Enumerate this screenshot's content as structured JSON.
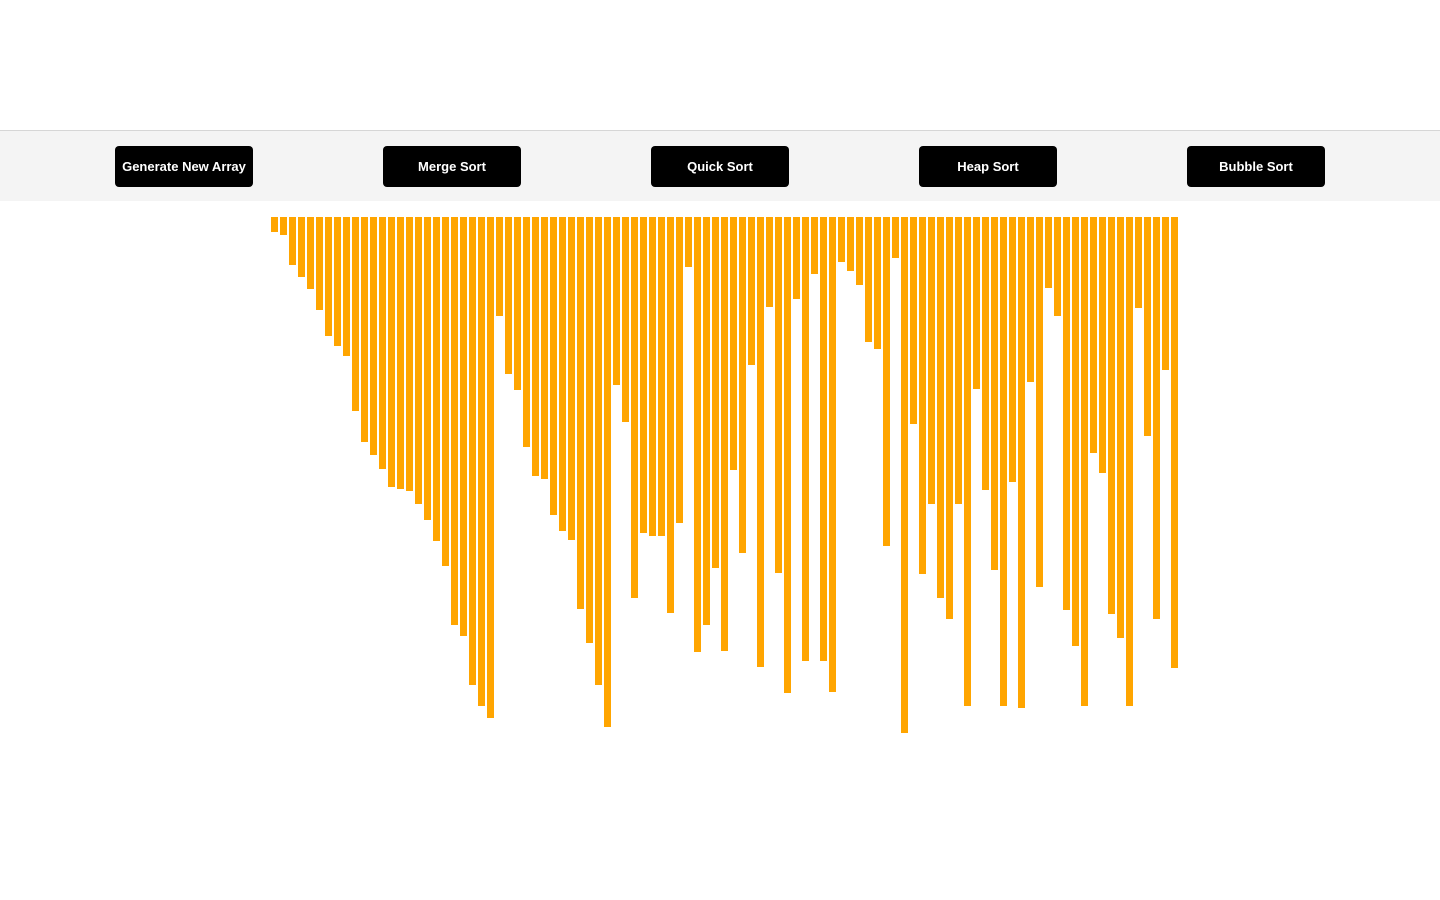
{
  "toolbar": {
    "generate_label": "Generate New Array",
    "merge_label": "Merge Sort",
    "quick_label": "Quick Sort",
    "heap_label": "Heap Sort",
    "bubble_label": "Bubble Sort"
  },
  "colors": {
    "bar": "#ffa500",
    "button_bg": "#000000",
    "button_text": "#ffffff",
    "toolbar_bg": "#f4f4f4"
  },
  "array": [
    15,
    18,
    48,
    60,
    72,
    93,
    119,
    129,
    139,
    194,
    225,
    238,
    252,
    270,
    272,
    274,
    287,
    303,
    324,
    349,
    408,
    419,
    468,
    489,
    501,
    99,
    157,
    173,
    230,
    259,
    262,
    298,
    314,
    323,
    392,
    426,
    468,
    510,
    168,
    205,
    381,
    316,
    319,
    319,
    396,
    306,
    50,
    435,
    408,
    351,
    434,
    253,
    336,
    148,
    450,
    90,
    356,
    476,
    82,
    444,
    57,
    444,
    475,
    45,
    54,
    68,
    125,
    132,
    329,
    41,
    516,
    207,
    357,
    287,
    381,
    402,
    287,
    489,
    172,
    273,
    353,
    489,
    265,
    491,
    165,
    370,
    71,
    99,
    393,
    429,
    489,
    236,
    256,
    397,
    421,
    489,
    91,
    219,
    402,
    153,
    451
  ]
}
